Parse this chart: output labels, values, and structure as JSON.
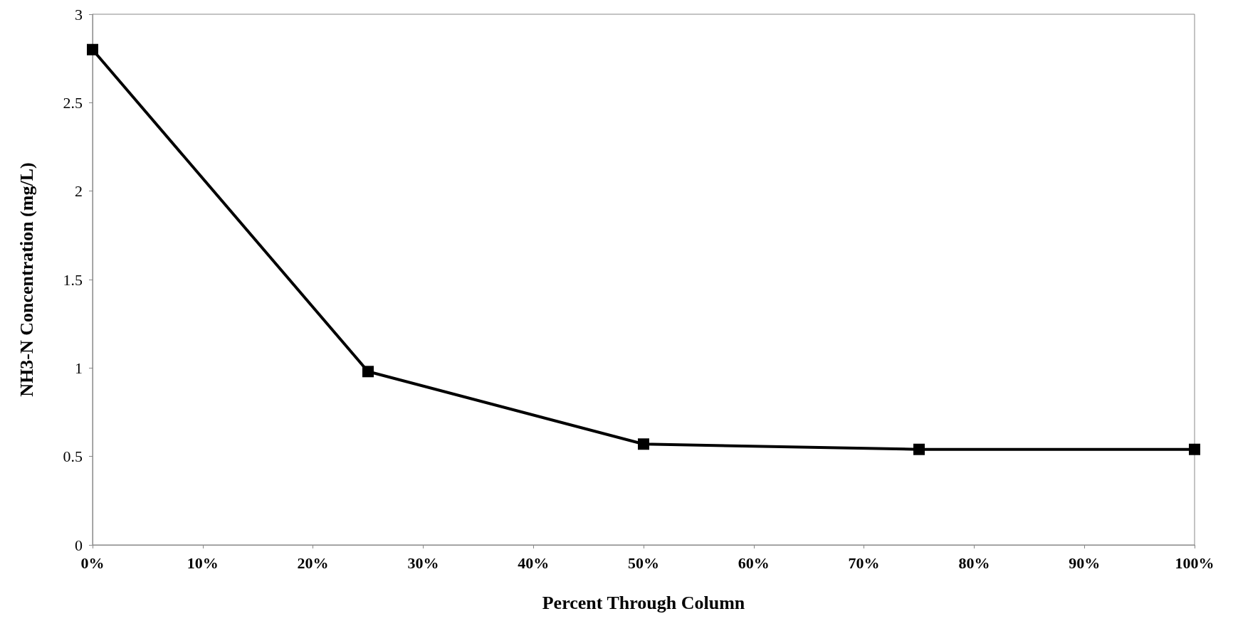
{
  "chart_data": {
    "type": "line",
    "xlabel": "Percent Through Column",
    "ylabel": "NH3-N Concentration (mg/L)",
    "x": [
      0,
      25,
      50,
      75,
      100
    ],
    "series": [
      {
        "color": "#000000",
        "values": [
          2.8,
          0.98,
          0.57,
          0.54,
          0.54
        ]
      }
    ],
    "xlim": [
      0,
      100
    ],
    "xticks": [
      {
        "value": 0,
        "label": "0%"
      },
      {
        "value": 10,
        "label": "10%"
      },
      {
        "value": 20,
        "label": "20%"
      },
      {
        "value": 30,
        "label": "30%"
      },
      {
        "value": 40,
        "label": "40%"
      },
      {
        "value": 50,
        "label": "50%"
      },
      {
        "value": 60,
        "label": "60%"
      },
      {
        "value": 70,
        "label": "70%"
      },
      {
        "value": 80,
        "label": "80%"
      },
      {
        "value": 90,
        "label": "90%"
      },
      {
        "value": 100,
        "label": "100%"
      }
    ],
    "ylim": [
      0,
      3
    ],
    "yticks": [
      0,
      0.5,
      1,
      1.5,
      2,
      2.5,
      3
    ],
    "grid": false,
    "marker": "square",
    "line_style": "solid"
  }
}
